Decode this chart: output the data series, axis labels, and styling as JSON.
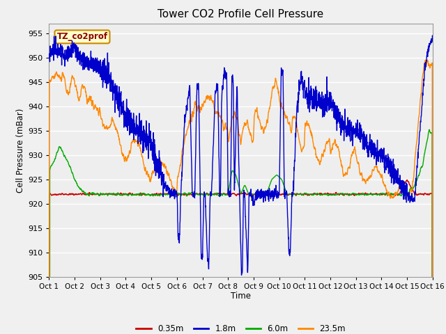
{
  "title": "Tower CO2 Profile Cell Pressure",
  "xlabel": "Time",
  "ylabel": "Cell Pressure (mBar)",
  "ylim": [
    905,
    957
  ],
  "yticks": [
    905,
    910,
    915,
    920,
    925,
    930,
    935,
    940,
    945,
    950,
    955
  ],
  "xlim": [
    0,
    15
  ],
  "xtick_labels": [
    "Oct 1",
    "Oct 2",
    "Oct 3",
    "Oct 4",
    "Oct 5",
    "Oct 6",
    "Oct 7",
    "Oct 8",
    "Oct 9",
    "Oct 10",
    "Oct 11",
    "Oct 12",
    "Oct 13",
    "Oct 14",
    "Oct 15",
    "Oct 16"
  ],
  "colors": {
    "0.35m": "#cc0000",
    "1.8m": "#0000cc",
    "6.0m": "#00aa00",
    "23.5m": "#ff8800"
  },
  "legend_label": "TZ_co2prof",
  "legend_bg": "#ffffcc",
  "legend_border": "#cc8800",
  "fig_bg": "#f0f0f0",
  "plot_bg": "#eeeeee"
}
